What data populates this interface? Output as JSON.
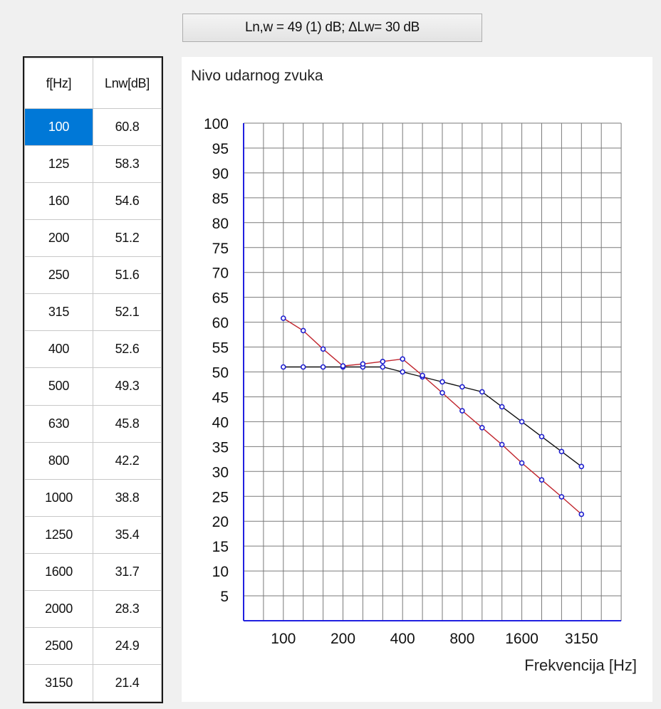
{
  "result": {
    "label": "Ln,w = 49 (1) dB; ΔLw= 30 dB"
  },
  "grid": {
    "headers": [
      "f[Hz]",
      "Lnw[dB]"
    ],
    "selected_row": 0,
    "rows": [
      [
        "100",
        "60.8"
      ],
      [
        "125",
        "58.3"
      ],
      [
        "160",
        "54.6"
      ],
      [
        "200",
        "51.2"
      ],
      [
        "250",
        "51.6"
      ],
      [
        "315",
        "52.1"
      ],
      [
        "400",
        "52.6"
      ],
      [
        "500",
        "49.3"
      ],
      [
        "630",
        "45.8"
      ],
      [
        "800",
        "42.2"
      ],
      [
        "1000",
        "38.8"
      ],
      [
        "1250",
        "35.4"
      ],
      [
        "1600",
        "31.7"
      ],
      [
        "2000",
        "28.3"
      ],
      [
        "2500",
        "24.9"
      ],
      [
        "3150",
        "21.4"
      ]
    ]
  },
  "chart_data": {
    "type": "line",
    "title": "Nivo udarnog zvuka",
    "xlabel": "Frekvencija [Hz]",
    "ylabel": "",
    "x": [
      100,
      125,
      160,
      200,
      250,
      315,
      400,
      500,
      630,
      800,
      1000,
      1250,
      1600,
      2000,
      2500,
      3150
    ],
    "x_tick_labels": [
      "100",
      "200",
      "400",
      "800",
      "1600",
      "3150"
    ],
    "x_tick_values": [
      100,
      200,
      400,
      800,
      1600,
      3150
    ],
    "y_ticks": [
      5,
      10,
      15,
      20,
      25,
      30,
      35,
      40,
      45,
      50,
      55,
      60,
      65,
      70,
      75,
      80,
      85,
      90,
      95,
      100
    ],
    "ylim": [
      0,
      100
    ],
    "grid": true,
    "series": [
      {
        "values": [
          60.8,
          58.3,
          54.6,
          51.2,
          51.6,
          52.1,
          52.6,
          49.3,
          45.8,
          42.2,
          38.8,
          35.4,
          31.7,
          28.3,
          24.9,
          21.4
        ],
        "color": "#c0242c"
      },
      {
        "values": [
          51,
          51,
          51,
          51,
          51,
          51,
          50,
          49,
          48,
          47,
          46,
          43,
          40,
          37,
          34,
          31
        ],
        "color": "#101010"
      }
    ],
    "marker_color": "#1f1fd0",
    "axis_color": "#2020e0",
    "grid_color": "#7a7a7a"
  }
}
